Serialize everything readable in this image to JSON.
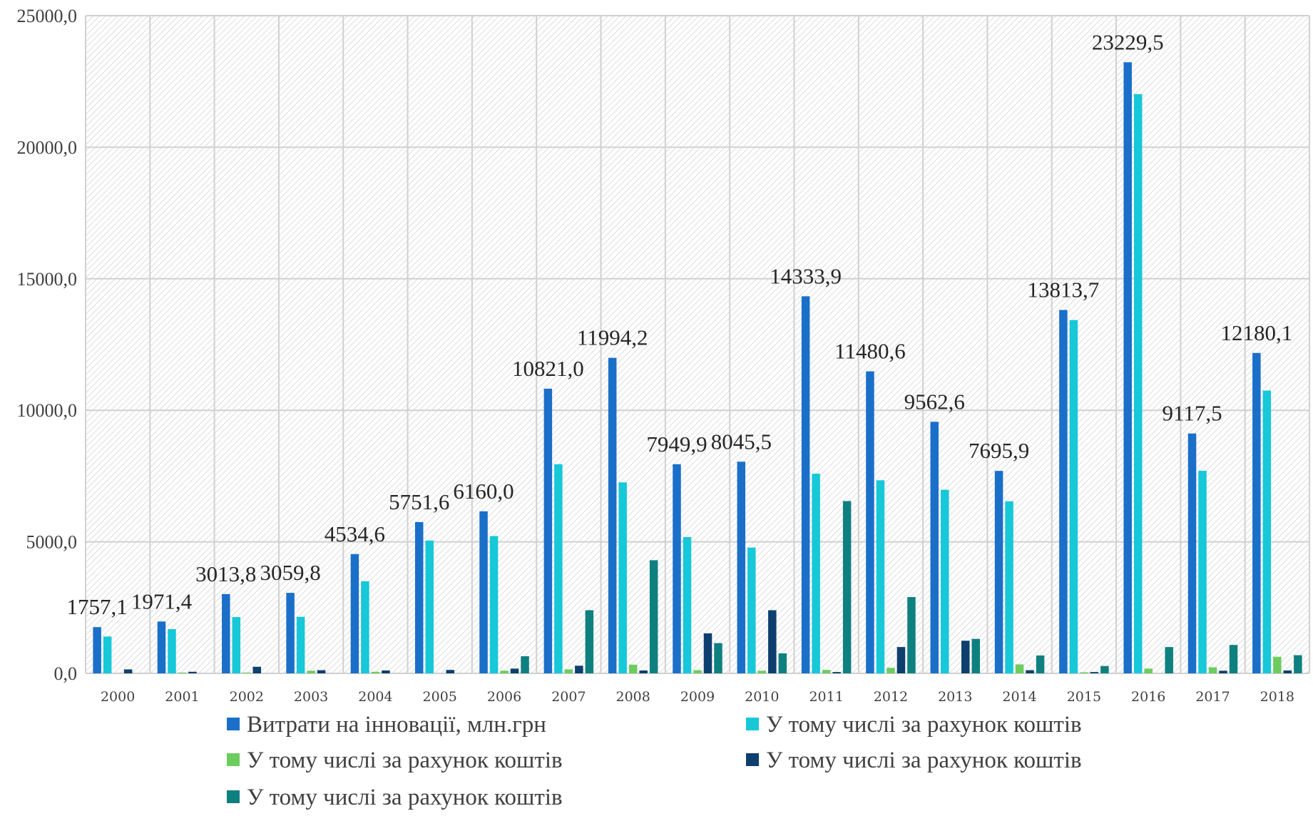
{
  "chart_data": {
    "type": "bar",
    "title": "",
    "xlabel": "",
    "ylabel": "",
    "ylim": [
      0,
      25000
    ],
    "yticks": [
      "0,0",
      "5000,0",
      "10000,0",
      "15000,0",
      "20000,0",
      "25000,0"
    ],
    "grid": true,
    "legend_position": "bottom",
    "categories": [
      "2000",
      "2001",
      "2002",
      "2003",
      "2004",
      "2005",
      "2006",
      "2007",
      "2008",
      "2009",
      "2010",
      "2011",
      "2012",
      "2013",
      "2014",
      "2015",
      "2016",
      "2017",
      "2018"
    ],
    "series": [
      {
        "name": "Витрати на інновації, млн.грн",
        "color": "#1a6fc9",
        "values": [
          1757.1,
          1971.4,
          3013.8,
          3059.8,
          4534.6,
          5751.6,
          6160.0,
          10821.0,
          11994.2,
          7949.9,
          8045.5,
          14333.9,
          11480.6,
          9562.6,
          7695.9,
          13813.7,
          23229.5,
          9117.5,
          12180.1
        ],
        "labels": [
          "1757,1",
          "1971,4",
          "3013,8",
          "3059,8",
          "4534,6",
          "5751,6",
          "6160,0",
          "10821,0",
          "11994,2",
          "7949,9",
          "8045,5",
          "14333,9",
          "11480,6",
          "9562,6",
          "7695,9",
          "13813,7",
          "23229,5",
          "9117,5",
          "12180,1"
        ]
      },
      {
        "name": "У тому числі за рахунок коштів",
        "color": "#16c8d8",
        "values": [
          1400,
          1680,
          2140,
          2150,
          3500,
          5050,
          5220,
          7950,
          7260,
          5180,
          4780,
          7590,
          7340,
          6980,
          6540,
          13430,
          22020,
          7700,
          10750
        ]
      },
      {
        "name": "У тому числі за рахунок коштів",
        "color": "#6ccc5e",
        "values": [
          0,
          30,
          30,
          100,
          60,
          0,
          100,
          150,
          330,
          120,
          100,
          130,
          210,
          0,
          340,
          40,
          180,
          230,
          630
        ]
      },
      {
        "name": "У тому числі за рахунок коштів",
        "color": "#0e3f6e",
        "values": [
          150,
          60,
          250,
          120,
          110,
          130,
          180,
          290,
          110,
          1520,
          2400,
          50,
          1000,
          1240,
          120,
          50,
          0,
          100,
          110
        ]
      },
      {
        "name": "У тому числі за рахунок коштів",
        "color": "#0f8080",
        "values": [
          0,
          0,
          0,
          0,
          0,
          0,
          650,
          2400,
          4300,
          1150,
          760,
          6550,
          2900,
          1310,
          680,
          280,
          1000,
          1080,
          690
        ]
      }
    ]
  }
}
